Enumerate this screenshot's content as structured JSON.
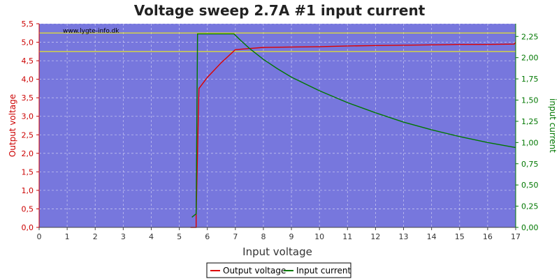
{
  "chart_data": {
    "type": "line",
    "title": "Voltage sweep 2.7A #1 input current",
    "watermark": "www.lygte-info.dk",
    "xlabel": "Input voltage",
    "ylabel_left": "Output voltage",
    "ylabel_right": "input current",
    "xlim": [
      0,
      17
    ],
    "ylim_left": [
      0,
      5.5
    ],
    "ylim_right": [
      0,
      2.4
    ],
    "x_ticks": [
      "0",
      "1",
      "2",
      "3",
      "4",
      "5",
      "6",
      "7",
      "8",
      "9",
      "10",
      "11",
      "12",
      "13",
      "14",
      "15",
      "16",
      "17"
    ],
    "y_left_ticks": [
      "0,0",
      "0,5",
      "1,0",
      "1,5",
      "2,0",
      "2,5",
      "3,0",
      "3,5",
      "4,0",
      "4,5",
      "5,0",
      "5,5"
    ],
    "y_right_ticks": [
      "0,00",
      "0,25",
      "0,50",
      "0,75",
      "1,00",
      "1,25",
      "1,50",
      "1,75",
      "2,00",
      "2,25"
    ],
    "reference_lines_left": [
      5.25,
      4.75
    ],
    "grid": true,
    "legend_position": "bottom-center",
    "colors": {
      "plot_bg": "#7777dd",
      "output_voltage": "#dd0000",
      "input_current": "#007700",
      "reference": "#ffff00",
      "left_axis": "#cc0000",
      "right_axis": "#007700"
    },
    "series": [
      {
        "name": "Output voltage",
        "axis": "left",
        "x": [
          5.4,
          5.6,
          5.6,
          5.7,
          6.0,
          6.5,
          7.0,
          7.5,
          8.0,
          9.0,
          10.0,
          11.0,
          12.0,
          13.0,
          14.0,
          15.0,
          16.0,
          16.95,
          17.0
        ],
        "y": [
          0.0,
          0.0,
          0.3,
          3.75,
          4.05,
          4.45,
          4.8,
          4.83,
          4.86,
          4.87,
          4.88,
          4.9,
          4.91,
          4.92,
          4.93,
          4.94,
          4.94,
          4.95,
          5.0
        ]
      },
      {
        "name": "Input current",
        "axis": "right",
        "x": [
          5.45,
          5.6,
          5.65,
          5.7,
          6.0,
          6.5,
          6.95,
          7.2,
          7.5,
          8.0,
          8.5,
          9.0,
          9.5,
          10.0,
          11.0,
          12.0,
          13.0,
          14.0,
          15.0,
          16.0,
          17.0
        ],
        "y": [
          0.12,
          0.16,
          2.28,
          2.28,
          2.28,
          2.28,
          2.28,
          2.2,
          2.11,
          1.98,
          1.87,
          1.77,
          1.69,
          1.61,
          1.47,
          1.35,
          1.24,
          1.15,
          1.07,
          1.0,
          0.94
        ]
      }
    ]
  }
}
